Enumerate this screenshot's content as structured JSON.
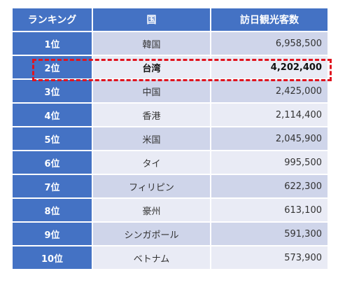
{
  "table": {
    "headers": [
      "ランキング",
      "国",
      "訪日観光客数"
    ],
    "rows": [
      {
        "rank": "1位",
        "country": "韓国",
        "visitors": "6,958,500"
      },
      {
        "rank": "2位",
        "country": "台湾",
        "visitors": "4,202,400"
      },
      {
        "rank": "3位",
        "country": "中国",
        "visitors": "2,425,000"
      },
      {
        "rank": "4位",
        "country": "香港",
        "visitors": "2,114,400"
      },
      {
        "rank": "5位",
        "country": "米国",
        "visitors": "2,045,900"
      },
      {
        "rank": "6位",
        "country": "タイ",
        "visitors": "995,500"
      },
      {
        "rank": "7位",
        "country": "フィリピン",
        "visitors": "622,300"
      },
      {
        "rank": "8位",
        "country": "豪州",
        "visitors": "613,100"
      },
      {
        "rank": "9位",
        "country": "シンガポール",
        "visitors": "591,300"
      },
      {
        "rank": "10位",
        "country": "ベトナム",
        "visitors": "573,900"
      }
    ],
    "highlighted_row": 1
  },
  "colors": {
    "header_bg": "#4472c4",
    "row_odd_bg": "#cfd5ea",
    "row_even_bg": "#e9ebf5",
    "highlight_border": "#e0141e"
  }
}
